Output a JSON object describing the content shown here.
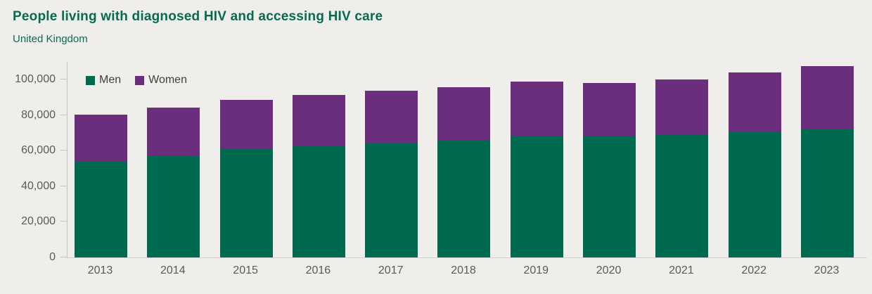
{
  "header": {
    "title": "People living with diagnosed HIV and accessing HIV care",
    "subtitle": "United Kingdom"
  },
  "colors": {
    "background": "#EFEEEB",
    "title_green": "#066B50",
    "men_green": "#006A50",
    "women_purple": "#6B2E7D",
    "axis_text": "#5B5A58",
    "legend_text": "#3F3F3E",
    "axis_line": "#C5C4C1"
  },
  "chart_data": {
    "type": "bar",
    "stacked": true,
    "title": "People living with diagnosed HIV and accessing HIV care",
    "subtitle": "United Kingdom",
    "xlabel": "",
    "ylabel": "",
    "grid": false,
    "legend_position": "top-left",
    "categories": [
      "2013",
      "2014",
      "2015",
      "2016",
      "2017",
      "2018",
      "2019",
      "2020",
      "2021",
      "2022",
      "2023"
    ],
    "series": [
      {
        "name": "Men",
        "color": "#006A50",
        "values": [
          54000,
          57300,
          60900,
          63100,
          64700,
          66000,
          68000,
          68000,
          69000,
          70800,
          72000
        ]
      },
      {
        "name": "Women",
        "color": "#6B2E7D",
        "values": [
          26500,
          27200,
          27700,
          28300,
          29300,
          29600,
          30900,
          30000,
          31200,
          33100,
          35800
        ]
      }
    ],
    "totals": [
      80500,
      84500,
      88600,
      91400,
      94000,
      95600,
      98900,
      98000,
      100200,
      103900,
      107800
    ],
    "ylim": [
      0,
      110000
    ],
    "yticks": [
      0,
      20000,
      40000,
      60000,
      80000,
      100000
    ],
    "ytick_labels": [
      "0",
      "20,000",
      "40,000",
      "60,000",
      "80,000",
      "100,000"
    ]
  }
}
